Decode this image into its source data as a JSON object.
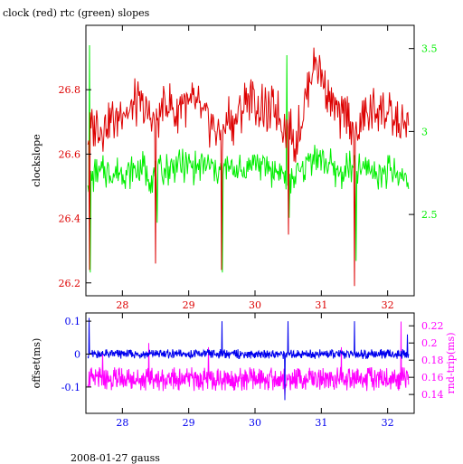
{
  "chart_data": [
    {
      "type": "line",
      "title": "clock (red) rtc (green) slopes",
      "ylabel": "clockslope",
      "xlim": [
        27.45,
        32.4
      ],
      "ylim": [
        26.16,
        27.0
      ],
      "y2lim": [
        2.01,
        3.64
      ],
      "xticks": [
        "28",
        "29",
        "30",
        "31",
        "32"
      ],
      "yticks": [
        "26.2",
        "26.4",
        "26.6",
        "26.8"
      ],
      "y2ticks": [
        "2.5",
        "3",
        "3.5"
      ],
      "colors": {
        "clock": "#dd0000",
        "rtc": "#00ee00",
        "axis": "#000000"
      },
      "series": [
        {
          "axis": "left",
          "x": [
            27.48,
            27.6,
            27.7,
            27.8,
            27.9,
            28.0,
            28.1,
            28.2,
            28.3,
            28.4,
            28.5,
            28.6,
            28.7,
            28.8,
            28.9,
            29.0,
            29.1,
            29.2,
            29.3,
            29.4,
            29.5,
            29.6,
            29.7,
            29.8,
            29.9,
            30.0,
            30.1,
            30.2,
            30.3,
            30.4,
            30.5,
            30.6,
            30.7,
            30.8,
            30.9,
            31.0,
            31.1,
            31.2,
            31.3,
            31.4,
            31.5,
            31.6,
            31.7,
            31.8,
            31.9,
            32.0,
            32.1,
            32.2,
            32.32
          ],
          "y": [
            26.65,
            26.7,
            26.68,
            26.72,
            26.7,
            26.75,
            26.72,
            26.76,
            26.74,
            26.72,
            26.7,
            26.74,
            26.76,
            26.72,
            26.78,
            26.74,
            26.76,
            26.72,
            26.7,
            26.68,
            26.65,
            26.72,
            26.7,
            26.74,
            26.78,
            26.76,
            26.74,
            26.72,
            26.75,
            26.7,
            26.68,
            26.64,
            26.7,
            26.82,
            26.9,
            26.85,
            26.8,
            26.74,
            26.7,
            26.75,
            26.65,
            26.7,
            26.72,
            26.74,
            26.75,
            26.72,
            26.7,
            26.68,
            26.7
          ],
          "amplitude": 0.08,
          "spikes": [
            {
              "x": 27.5,
              "y": 26.24
            },
            {
              "x": 28.5,
              "y": 26.26
            },
            {
              "x": 29.5,
              "y": 26.24
            },
            {
              "x": 30.5,
              "y": 26.35
            },
            {
              "x": 31.5,
              "y": 26.19
            }
          ]
        },
        {
          "axis": "right",
          "x": [
            27.48,
            27.6,
            27.7,
            27.8,
            27.9,
            28.0,
            28.1,
            28.2,
            28.3,
            28.4,
            28.5,
            28.6,
            28.7,
            28.8,
            28.9,
            29.0,
            29.1,
            29.2,
            29.3,
            29.4,
            29.5,
            29.6,
            29.7,
            29.8,
            29.9,
            30.0,
            30.1,
            30.2,
            30.3,
            30.4,
            30.5,
            30.6,
            30.7,
            30.8,
            30.9,
            31.0,
            31.1,
            31.2,
            31.3,
            31.4,
            31.5,
            31.6,
            31.7,
            31.8,
            31.9,
            32.0,
            32.1,
            32.2,
            32.32
          ],
          "y": [
            2.72,
            2.74,
            2.75,
            2.76,
            2.74,
            2.77,
            2.75,
            2.76,
            2.78,
            2.74,
            2.73,
            2.76,
            2.78,
            2.8,
            2.79,
            2.8,
            2.78,
            2.8,
            2.79,
            2.77,
            2.76,
            2.77,
            2.78,
            2.75,
            2.8,
            2.82,
            2.8,
            2.78,
            2.76,
            2.75,
            2.72,
            2.74,
            2.76,
            2.82,
            2.86,
            2.84,
            2.8,
            2.77,
            2.75,
            2.78,
            2.76,
            2.77,
            2.78,
            2.76,
            2.75,
            2.76,
            2.75,
            2.72,
            2.74
          ],
          "amplitude": 0.11,
          "spikes": [
            {
              "x": 27.5,
              "y": 3.52
            },
            {
              "x": 27.52,
              "y": 2.15
            },
            {
              "x": 28.52,
              "y": 2.45
            },
            {
              "x": 29.51,
              "y": 2.15
            },
            {
              "x": 30.48,
              "y": 3.46
            },
            {
              "x": 30.52,
              "y": 2.48
            },
            {
              "x": 31.52,
              "y": 2.22
            }
          ]
        }
      ]
    },
    {
      "type": "line",
      "ylabel": "offset(ms)",
      "y2label": "rnd-trip(ms)",
      "xlim": [
        27.45,
        32.4
      ],
      "ylim": [
        -0.18,
        0.125
      ],
      "y2lim": [
        0.118,
        0.235
      ],
      "xticks": [
        "28",
        "29",
        "30",
        "31",
        "32"
      ],
      "yticks": [
        "-0.1",
        "0",
        "0.1"
      ],
      "y2ticks": [
        "0.14",
        "0.16",
        "0.18",
        "0.2",
        "0.22"
      ],
      "colors": {
        "offset": "#0000ee",
        "rndtrip": "#ff00ff",
        "axis": "#000000"
      },
      "series": [
        {
          "axis": "left",
          "x": [
            27.48,
            32.32
          ],
          "y": [
            0.0,
            0.0
          ],
          "amplitude": 0.015,
          "spikes": [
            {
              "x": 27.5,
              "y": 0.11
            },
            {
              "x": 29.5,
              "y": 0.1
            },
            {
              "x": 30.45,
              "y": -0.14
            },
            {
              "x": 30.5,
              "y": 0.1
            },
            {
              "x": 31.5,
              "y": 0.1
            },
            {
              "x": 32.3,
              "y": 0.06
            }
          ]
        },
        {
          "axis": "right",
          "x": [
            27.48,
            32.32
          ],
          "y": [
            0.158,
            0.158
          ],
          "amplitude": 0.014,
          "spikes": [
            {
              "x": 27.7,
              "y": 0.19
            },
            {
              "x": 28.4,
              "y": 0.2
            },
            {
              "x": 29.3,
              "y": 0.195
            },
            {
              "x": 30.45,
              "y": 0.138
            },
            {
              "x": 31.3,
              "y": 0.195
            },
            {
              "x": 32.2,
              "y": 0.225
            }
          ]
        }
      ]
    }
  ],
  "footer": "2008-01-27 gauss"
}
